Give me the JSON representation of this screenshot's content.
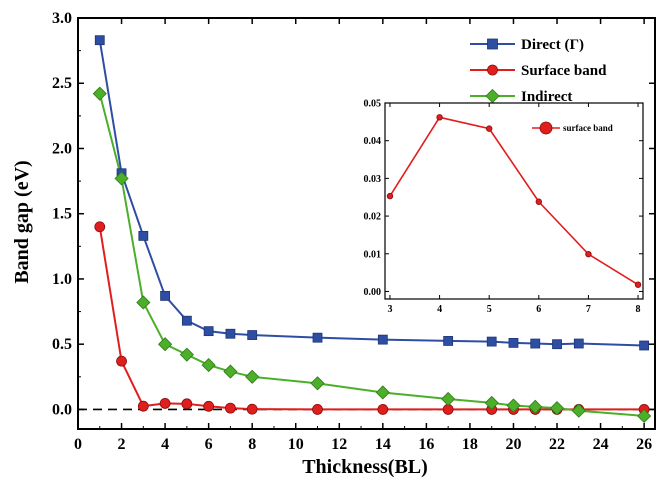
{
  "chart_data": [
    {
      "type": "line",
      "xlabel": "Thickness(BL)",
      "ylabel": "Band gap (eV)",
      "xlim": [
        0,
        26.5
      ],
      "ylim": [
        -0.15,
        3.0
      ],
      "x_ticks": [
        0,
        2,
        4,
        6,
        8,
        10,
        12,
        14,
        16,
        18,
        20,
        22,
        24,
        26
      ],
      "y_ticks": [
        0.0,
        0.5,
        1.0,
        1.5,
        2.0,
        2.5,
        3.0
      ],
      "x_tick_labels": [
        "0",
        "2",
        "4",
        "6",
        "8",
        "10",
        "12",
        "14",
        "16",
        "18",
        "20",
        "22",
        "24",
        "26"
      ],
      "y_tick_labels": [
        "0.0",
        "0.5",
        "1.0",
        "1.5",
        "2.0",
        "2.5",
        "3.0"
      ],
      "reference_line": {
        "y": 0,
        "style": "dashed"
      },
      "legend_position": "top-right",
      "series": [
        {
          "name": "Direct (Γ)",
          "color": "#2e4ea3",
          "marker": "square",
          "x": [
            1,
            2,
            3,
            4,
            5,
            6,
            7,
            8,
            11,
            14,
            17,
            19,
            20,
            21,
            22,
            23,
            26
          ],
          "y": [
            2.83,
            1.81,
            1.33,
            0.87,
            0.68,
            0.6,
            0.58,
            0.57,
            0.55,
            0.535,
            0.525,
            0.52,
            0.51,
            0.505,
            0.5,
            0.505,
            0.49
          ]
        },
        {
          "name": "Surface band",
          "color": "#e11e1e",
          "marker": "circle",
          "x": [
            1,
            2,
            3,
            4,
            5,
            6,
            7,
            8,
            11,
            14,
            17,
            19,
            20,
            21,
            22,
            23,
            26
          ],
          "y": [
            1.4,
            0.37,
            0.025,
            0.046,
            0.043,
            0.024,
            0.01,
            0.002,
            0.0,
            0.0,
            0.0,
            0.0,
            0.0,
            0.0,
            0.0,
            0.0,
            0.0
          ]
        },
        {
          "name": "Indirect",
          "color": "#4caf2a",
          "marker": "diamond",
          "x": [
            1,
            2,
            3,
            4,
            5,
            6,
            7,
            8,
            11,
            14,
            17,
            19,
            20,
            21,
            22,
            23,
            26
          ],
          "y": [
            2.42,
            1.77,
            0.82,
            0.5,
            0.42,
            0.34,
            0.29,
            0.25,
            0.2,
            0.13,
            0.08,
            0.05,
            0.03,
            0.02,
            0.01,
            -0.01,
            -0.05
          ]
        }
      ]
    },
    {
      "type": "line",
      "xlim": [
        2.9,
        8.1
      ],
      "ylim": [
        -0.002,
        0.05
      ],
      "x_ticks": [
        3,
        4,
        5,
        6,
        7,
        8
      ],
      "y_ticks": [
        0.0,
        0.01,
        0.02,
        0.03,
        0.04,
        0.05
      ],
      "x_tick_labels": [
        "3",
        "4",
        "5",
        "6",
        "7",
        "8"
      ],
      "y_tick_labels": [
        "0.00",
        "0.01",
        "0.02",
        "0.03",
        "0.04",
        "0.05"
      ],
      "legend_position": "top-right",
      "series": [
        {
          "name": "surface band",
          "color": "#e11e1e",
          "marker": "circle",
          "x": [
            3,
            4,
            5,
            6,
            7,
            8
          ],
          "y": [
            0.0253,
            0.0462,
            0.0432,
            0.0238,
            0.0099,
            0.0018
          ]
        }
      ]
    }
  ]
}
